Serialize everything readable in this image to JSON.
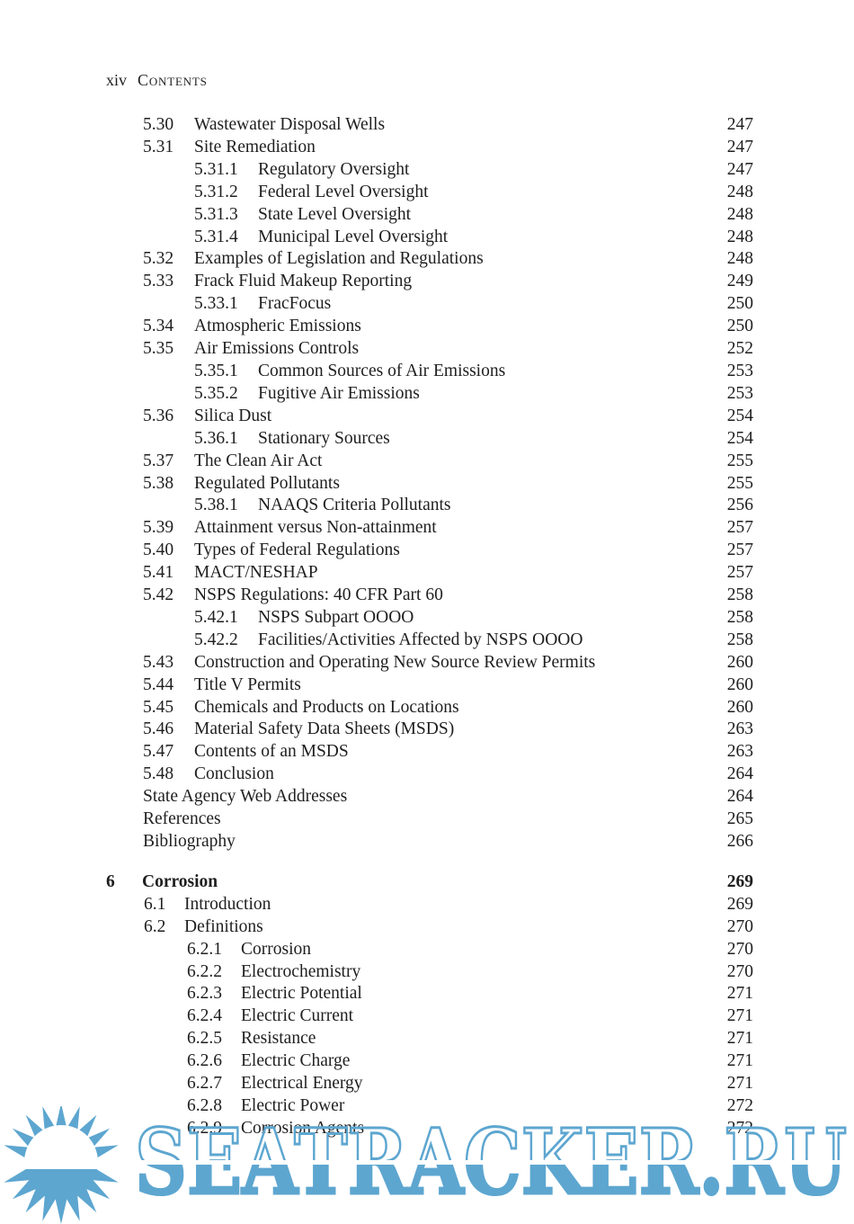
{
  "header": {
    "page_number": "xiv",
    "title": "Contents"
  },
  "toc": {
    "entries": [
      {
        "level": "c5-s1",
        "num": "5.30",
        "title": "Wastewater Disposal Wells",
        "page": "247"
      },
      {
        "level": "c5-s1",
        "num": "5.31",
        "title": "Site Remediation",
        "page": "247"
      },
      {
        "level": "c5-s2",
        "num": "5.31.1",
        "title": "Regulatory Oversight",
        "page": "247"
      },
      {
        "level": "c5-s2",
        "num": "5.31.2",
        "title": "Federal Level Oversight",
        "page": "248"
      },
      {
        "level": "c5-s2",
        "num": "5.31.3",
        "title": "State Level Oversight",
        "page": "248"
      },
      {
        "level": "c5-s2",
        "num": "5.31.4",
        "title": "Municipal Level Oversight",
        "page": "248"
      },
      {
        "level": "c5-s1",
        "num": "5.32",
        "title": "Examples of Legislation and Regulations",
        "page": "248"
      },
      {
        "level": "c5-s1",
        "num": "5.33",
        "title": "Frack Fluid Makeup Reporting",
        "page": "249"
      },
      {
        "level": "c5-s2",
        "num": "5.33.1",
        "title": "FracFocus",
        "page": "250"
      },
      {
        "level": "c5-s1",
        "num": "5.34",
        "title": "Atmospheric Emissions",
        "page": "250"
      },
      {
        "level": "c5-s1",
        "num": "5.35",
        "title": "Air Emissions Controls",
        "page": "252"
      },
      {
        "level": "c5-s2",
        "num": "5.35.1",
        "title": "Common Sources of Air Emissions",
        "page": "253"
      },
      {
        "level": "c5-s2",
        "num": "5.35.2",
        "title": "Fugitive Air Emissions",
        "page": "253"
      },
      {
        "level": "c5-s1",
        "num": "5.36",
        "title": "Silica Dust",
        "page": "254"
      },
      {
        "level": "c5-s2",
        "num": "5.36.1",
        "title": "Stationary Sources",
        "page": "254"
      },
      {
        "level": "c5-s1",
        "num": "5.37",
        "title": "The Clean Air Act",
        "page": "255"
      },
      {
        "level": "c5-s1",
        "num": "5.38",
        "title": "Regulated Pollutants",
        "page": "255"
      },
      {
        "level": "c5-s2",
        "num": "5.38.1",
        "title": "NAAQS Criteria Pollutants",
        "page": "256"
      },
      {
        "level": "c5-s1",
        "num": "5.39",
        "title": "Attainment versus Non-attainment",
        "page": "257"
      },
      {
        "level": "c5-s1",
        "num": "5.40",
        "title": "Types of Federal Regulations",
        "page": "257"
      },
      {
        "level": "c5-s1",
        "num": "5.41",
        "title": "MACT/NESHAP",
        "page": "257"
      },
      {
        "level": "c5-s1",
        "num": "5.42",
        "title": "NSPS Regulations: 40 CFR Part 60",
        "page": "258"
      },
      {
        "level": "c5-s2",
        "num": "5.42.1",
        "title": "NSPS Subpart OOOO",
        "page": "258"
      },
      {
        "level": "c5-s2",
        "num": "5.42.2",
        "title": "Facilities/Activities Affected by NSPS OOOO",
        "page": "258"
      },
      {
        "level": "c5-s1",
        "num": "5.43",
        "title": "Construction and Operating New Source Review Permits",
        "page": "260"
      },
      {
        "level": "c5-s1",
        "num": "5.44",
        "title": "Title V Permits",
        "page": "260"
      },
      {
        "level": "c5-s1",
        "num": "5.45",
        "title": "Chemicals and Products on Locations",
        "page": "260"
      },
      {
        "level": "c5-s1",
        "num": "5.46",
        "title": "Material Safety Data Sheets (MSDS)",
        "page": "263"
      },
      {
        "level": "c5-s1",
        "num": "5.47",
        "title": "Contents of an MSDS",
        "page": "263"
      },
      {
        "level": "c5-s1",
        "num": "5.48",
        "title": "Conclusion",
        "page": "264"
      },
      {
        "level": "plain",
        "num": "",
        "title": "State Agency Web Addresses",
        "page": "264"
      },
      {
        "level": "plain",
        "num": "",
        "title": "References",
        "page": "265"
      },
      {
        "level": "plain",
        "num": "",
        "title": "Bibliography",
        "page": "266"
      },
      {
        "level": "chapter",
        "num": "6",
        "title": "Corrosion",
        "page": "269",
        "gap_before": true
      },
      {
        "level": "c6-s1",
        "num": "6.1",
        "title": "Introduction",
        "page": "269"
      },
      {
        "level": "c6-s1",
        "num": "6.2",
        "title": "Definitions",
        "page": "270"
      },
      {
        "level": "c6-s2",
        "num": "6.2.1",
        "title": "Corrosion",
        "page": "270"
      },
      {
        "level": "c6-s2",
        "num": "6.2.2",
        "title": "Electrochemistry",
        "page": "270"
      },
      {
        "level": "c6-s2",
        "num": "6.2.3",
        "title": "Electric Potential",
        "page": "271"
      },
      {
        "level": "c6-s2",
        "num": "6.2.4",
        "title": "Electric Current",
        "page": "271"
      },
      {
        "level": "c6-s2",
        "num": "6.2.5",
        "title": "Resistance",
        "page": "271"
      },
      {
        "level": "c6-s2",
        "num": "6.2.6",
        "title": "Electric Charge",
        "page": "271"
      },
      {
        "level": "c6-s2",
        "num": "6.2.7",
        "title": "Electrical Energy",
        "page": "271"
      },
      {
        "level": "c6-s2",
        "num": "6.2.8",
        "title": "Electric Power",
        "page": "272"
      },
      {
        "level": "c6-s2",
        "num": "6.2.9",
        "title": "Corrosion Agents",
        "page": "272"
      }
    ]
  },
  "watermark": {
    "text": "SEATRACKER.RU",
    "color": "#5da6d0"
  },
  "colors": {
    "body_text": "#1f1f1f",
    "page_background": "#ffffff"
  }
}
